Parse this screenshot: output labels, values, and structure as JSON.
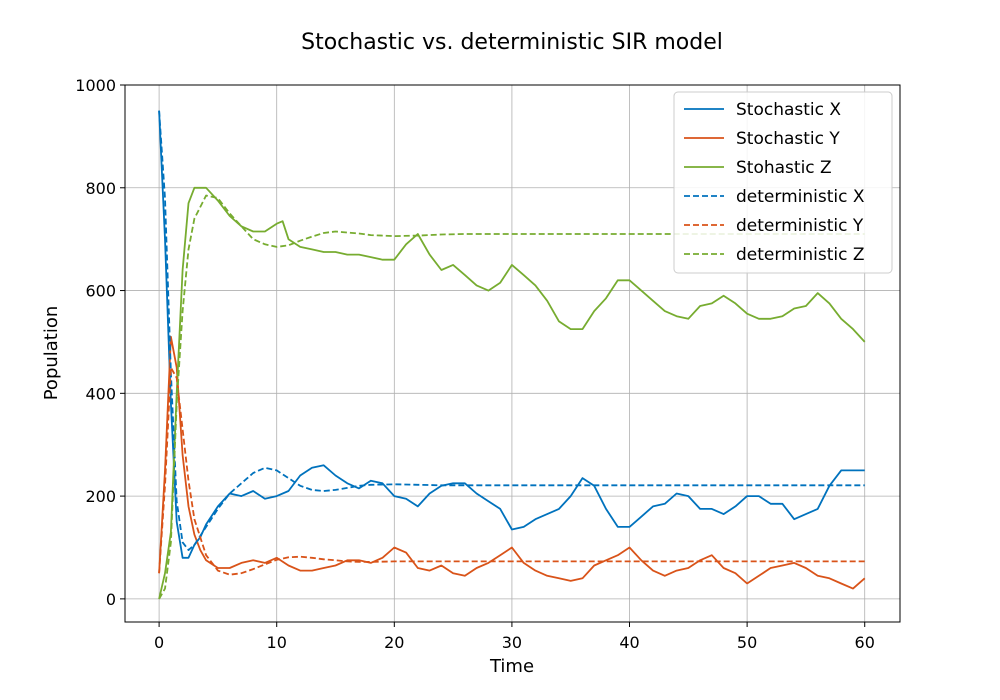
{
  "chart_data": {
    "type": "line",
    "title": "Stochastic vs. deterministic SIR model",
    "xlabel": "Time",
    "ylabel": "Population",
    "xlim": [
      -2.9,
      63
    ],
    "ylim": [
      -45,
      1000
    ],
    "xticks": [
      0,
      10,
      20,
      30,
      40,
      50,
      60
    ],
    "yticks": [
      0,
      200,
      400,
      600,
      800,
      1000
    ],
    "grid": true,
    "legend_position": "top-right",
    "series": [
      {
        "name": "Stochastic X",
        "style": "solid",
        "color": "#0072BD",
        "x": [
          0,
          0.5,
          1,
          1.5,
          2,
          2.5,
          3,
          3.5,
          4,
          5,
          6,
          7,
          8,
          9,
          10,
          11,
          12,
          13,
          14,
          15,
          16,
          17,
          18,
          19,
          20,
          21,
          22,
          23,
          24,
          25,
          26,
          27,
          28,
          29,
          30,
          31,
          32,
          33,
          34,
          35,
          36,
          37,
          38,
          39,
          40,
          41,
          42,
          43,
          44,
          45,
          46,
          47,
          48,
          49,
          50,
          51,
          52,
          53,
          54,
          55,
          56,
          57,
          58,
          59,
          60
        ],
        "y": [
          950,
          700,
          380,
          150,
          80,
          80,
          105,
          120,
          145,
          180,
          205,
          200,
          210,
          195,
          200,
          210,
          240,
          255,
          260,
          240,
          225,
          215,
          230,
          225,
          200,
          195,
          180,
          205,
          220,
          225,
          225,
          205,
          190,
          175,
          135,
          140,
          155,
          165,
          175,
          200,
          235,
          220,
          175,
          140,
          140,
          160,
          180,
          185,
          205,
          200,
          175,
          175,
          165,
          180,
          200,
          200,
          185,
          185,
          155,
          165,
          175,
          220,
          250,
          250,
          250
        ]
      },
      {
        "name": "Stochastic Y",
        "style": "solid",
        "color": "#D95319",
        "x": [
          0,
          0.5,
          1,
          1.5,
          2,
          2.5,
          3,
          3.5,
          4,
          5,
          6,
          7,
          8,
          9,
          10,
          11,
          12,
          13,
          14,
          15,
          16,
          17,
          18,
          19,
          20,
          21,
          22,
          23,
          24,
          25,
          26,
          27,
          28,
          29,
          30,
          31,
          32,
          33,
          34,
          35,
          36,
          37,
          38,
          39,
          40,
          41,
          42,
          43,
          44,
          45,
          46,
          47,
          48,
          49,
          50,
          51,
          52,
          53,
          54,
          55,
          56,
          57,
          58,
          59,
          60
        ],
        "y": [
          50,
          250,
          510,
          450,
          280,
          180,
          125,
          95,
          75,
          60,
          60,
          70,
          75,
          70,
          80,
          65,
          55,
          55,
          60,
          65,
          75,
          75,
          70,
          80,
          100,
          90,
          60,
          55,
          65,
          50,
          45,
          60,
          70,
          85,
          100,
          70,
          55,
          45,
          40,
          35,
          40,
          65,
          75,
          85,
          100,
          75,
          55,
          45,
          55,
          60,
          75,
          85,
          60,
          50,
          30,
          45,
          60,
          65,
          70,
          60,
          45,
          40,
          30,
          20,
          40
        ]
      },
      {
        "name": "Stohastic Z",
        "style": "solid",
        "color": "#77AC30",
        "x": [
          0,
          0.5,
          1,
          1.5,
          2,
          2.5,
          3,
          3.5,
          4,
          5,
          6,
          7,
          8,
          9,
          10,
          10.5,
          11,
          12,
          13,
          14,
          15,
          16,
          17,
          18,
          19,
          20,
          21,
          22,
          23,
          24,
          25,
          26,
          27,
          28,
          29,
          30,
          31,
          32,
          33,
          34,
          35,
          36,
          37,
          38,
          39,
          40,
          41,
          42,
          43,
          44,
          45,
          46,
          47,
          48,
          49,
          50,
          51,
          52,
          53,
          54,
          55,
          56,
          57,
          58,
          59,
          60
        ],
        "y": [
          0,
          50,
          130,
          400,
          640,
          770,
          800,
          800,
          800,
          775,
          745,
          725,
          715,
          715,
          730,
          735,
          700,
          685,
          680,
          675,
          675,
          670,
          670,
          665,
          660,
          660,
          690,
          710,
          670,
          640,
          650,
          630,
          610,
          600,
          615,
          650,
          630,
          610,
          580,
          540,
          525,
          525,
          560,
          585,
          620,
          620,
          600,
          580,
          560,
          550,
          545,
          570,
          575,
          590,
          575,
          555,
          545,
          545,
          550,
          565,
          570,
          595,
          575,
          545,
          525,
          500
        ]
      },
      {
        "name": "deterministic X",
        "style": "dashed",
        "color": "#0072BD",
        "x": [
          0,
          0.5,
          1,
          1.5,
          2,
          2.5,
          3,
          4,
          5,
          6,
          7,
          8,
          9,
          10,
          11,
          12,
          13,
          14,
          15,
          16,
          17,
          18,
          20,
          22,
          24,
          26,
          28,
          30,
          60
        ],
        "y": [
          950,
          780,
          440,
          190,
          110,
          95,
          105,
          140,
          175,
          205,
          225,
          245,
          255,
          250,
          235,
          220,
          212,
          210,
          212,
          216,
          220,
          222,
          223,
          222,
          221,
          221,
          221,
          221,
          221
        ]
      },
      {
        "name": "deterministic Y",
        "style": "dashed",
        "color": "#D95319",
        "x": [
          0,
          0.5,
          1,
          1.5,
          2,
          2.5,
          3,
          4,
          5,
          6,
          7,
          8,
          9,
          10,
          11,
          12,
          13,
          14,
          15,
          16,
          17,
          18,
          20,
          22,
          24,
          26,
          28,
          30,
          60
        ],
        "y": [
          50,
          220,
          450,
          430,
          330,
          230,
          155,
          85,
          55,
          47,
          50,
          58,
          67,
          76,
          81,
          82,
          80,
          77,
          75,
          73,
          72,
          72,
          73,
          73,
          73,
          73,
          73,
          73,
          73
        ]
      },
      {
        "name": "deterministic Z",
        "style": "dashed",
        "color": "#77AC30",
        "x": [
          0,
          0.5,
          1,
          1.5,
          2,
          2.5,
          3,
          4,
          5,
          6,
          7,
          8,
          9,
          10,
          11,
          12,
          13,
          14,
          15,
          16,
          17,
          18,
          20,
          22,
          24,
          26,
          28,
          30,
          60
        ],
        "y": [
          0,
          20,
          110,
          380,
          560,
          680,
          740,
          785,
          780,
          750,
          725,
          700,
          690,
          685,
          688,
          697,
          705,
          712,
          715,
          713,
          711,
          708,
          706,
          707,
          709,
          710,
          710,
          710,
          710
        ]
      }
    ]
  }
}
